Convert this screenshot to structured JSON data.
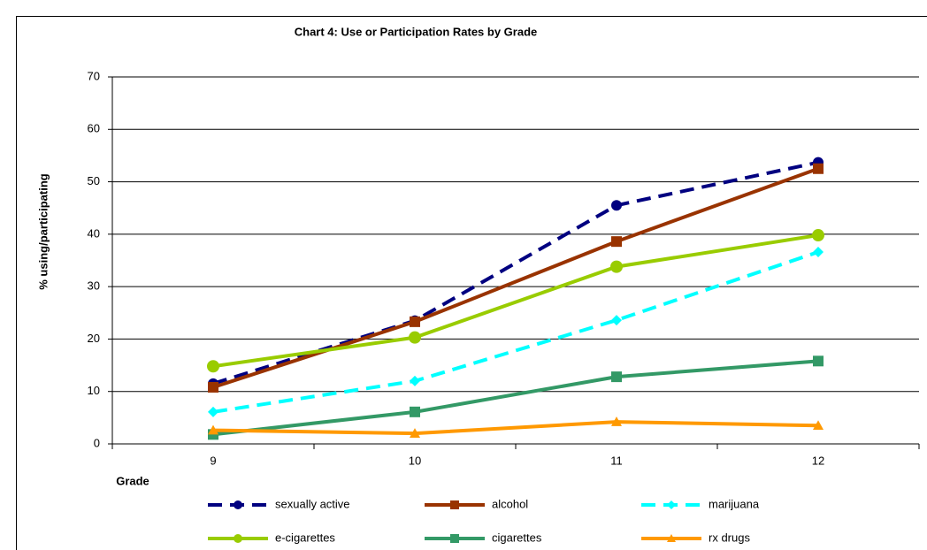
{
  "chart_data": {
    "type": "line",
    "title": "Chart 4:  Use or Participation Rates by Grade",
    "x_label": "Grade",
    "y_label": "% using/participating",
    "categories": [
      "9",
      "10",
      "11",
      "12"
    ],
    "ylim": [
      0,
      70
    ],
    "yticks": [
      0,
      10,
      20,
      30,
      40,
      50,
      60,
      70
    ],
    "grid": true,
    "series": [
      {
        "name": "sexually active",
        "color": "#000080",
        "marker": "circle",
        "dash": true,
        "values": [
          11.5,
          23.5,
          45.5,
          53.7
        ]
      },
      {
        "name": "alcohol",
        "color": "#993300",
        "marker": "square",
        "dash": false,
        "values": [
          10.8,
          23.3,
          38.6,
          52.5
        ]
      },
      {
        "name": "marijuana",
        "color": "#00ffff",
        "marker": "diamond",
        "dash": true,
        "values": [
          6.1,
          12.0,
          23.6,
          36.6
        ]
      },
      {
        "name": "e-cigarettes",
        "color": "#99cc00",
        "marker": "circle",
        "dash": false,
        "values": [
          14.8,
          20.3,
          33.8,
          39.8
        ]
      },
      {
        "name": "cigarettes",
        "color": "#339966",
        "marker": "square",
        "dash": false,
        "values": [
          1.8,
          6.1,
          12.8,
          15.8
        ]
      },
      {
        "name": "rx drugs",
        "color": "#ff9900",
        "marker": "triangle",
        "dash": false,
        "values": [
          2.6,
          2.0,
          4.2,
          3.5
        ]
      }
    ]
  }
}
